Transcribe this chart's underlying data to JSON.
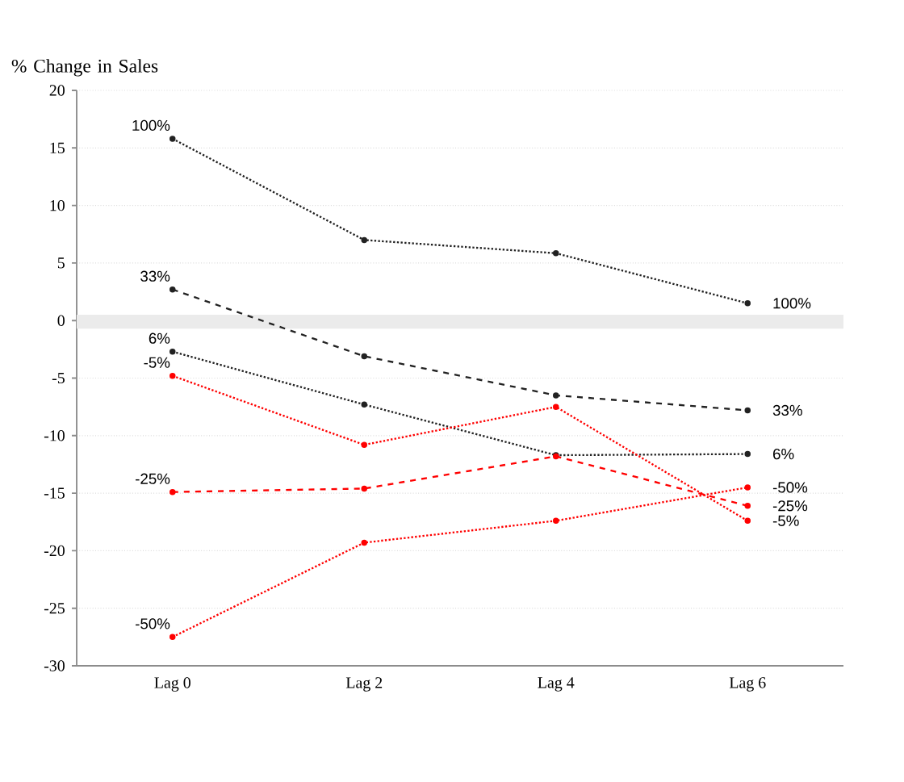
{
  "chart_data": {
    "type": "line",
    "ylabel": "% Change in Sales",
    "categories": [
      "Lag 0",
      "Lag 2",
      "Lag 4",
      "Lag 6"
    ],
    "series": [
      {
        "name": "100%",
        "color": "#222222",
        "line_style": "dotted",
        "values": [
          15.8,
          7.0,
          5.85,
          1.5
        ]
      },
      {
        "name": "33%",
        "color": "#222222",
        "line_style": "dashed",
        "values": [
          2.7,
          -3.1,
          -6.5,
          -7.8
        ]
      },
      {
        "name": "6%",
        "color": "#222222",
        "line_style": "dotted",
        "values": [
          -2.7,
          -7.3,
          -11.7,
          -11.6
        ]
      },
      {
        "name": "-5%",
        "color": "#ff0000",
        "line_style": "dotted",
        "values": [
          -4.8,
          -10.8,
          -7.5,
          -17.4
        ]
      },
      {
        "name": "-25%",
        "color": "#ff0000",
        "line_style": "dashed",
        "values": [
          -14.9,
          -14.6,
          -11.8,
          -16.1
        ]
      },
      {
        "name": "-50%",
        "color": "#ff0000",
        "line_style": "dotted",
        "values": [
          -27.5,
          -19.3,
          -17.4,
          -14.5
        ]
      }
    ],
    "ylim": [
      -30,
      20
    ],
    "yticks": [
      -30,
      -25,
      -20,
      -15,
      -10,
      -5,
      0,
      5,
      10,
      15,
      20
    ],
    "bands": [
      {
        "axis": "y",
        "from": -0.7,
        "to": 0.5,
        "color": "#ebebeb"
      }
    ],
    "grid": "y",
    "marker": "circle"
  }
}
